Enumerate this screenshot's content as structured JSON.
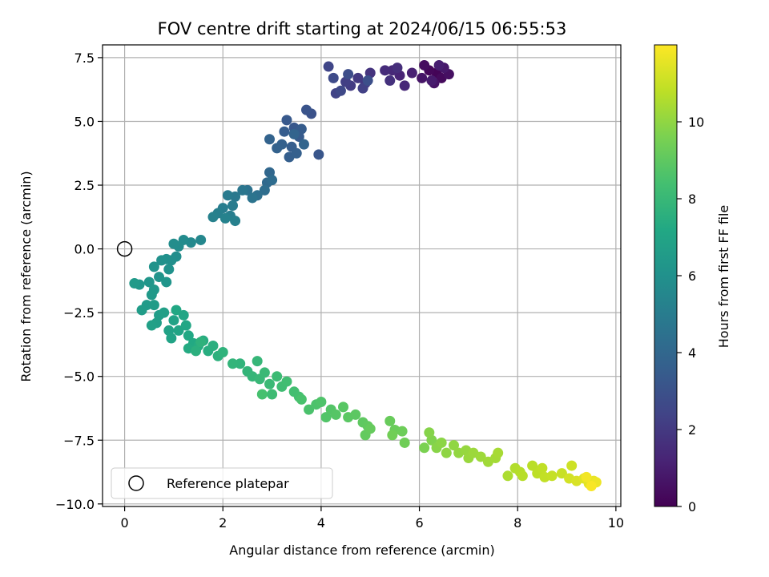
{
  "chart_data": {
    "type": "scatter",
    "title": "FOV centre drift starting at 2024/06/15 06:55:53",
    "xlabel": "Angular distance from reference (arcmin)",
    "ylabel": "Rotation from reference (arcmin)",
    "xlim": [
      -0.45,
      10.1
    ],
    "ylim": [
      -10.1,
      8.0
    ],
    "x_ticks": [
      0,
      2,
      4,
      6,
      8,
      10
    ],
    "y_ticks": [
      -10.0,
      -7.5,
      -5.0,
      -2.5,
      0.0,
      2.5,
      5.0,
      7.5
    ],
    "x_tick_labels": [
      "0",
      "2",
      "4",
      "6",
      "8",
      "10"
    ],
    "y_tick_labels": [
      "−10.0",
      "−7.5",
      "−5.0",
      "−2.5",
      "0.0",
      "2.5",
      "5.0",
      "7.5"
    ],
    "grid": true,
    "colormap": "viridis",
    "colorbar": {
      "label": "Hours from first FF file",
      "range": [
        0,
        12
      ],
      "ticks": [
        0,
        2,
        4,
        6,
        8,
        10
      ],
      "tick_labels": [
        "0",
        "2",
        "4",
        "6",
        "8",
        "10"
      ]
    },
    "reference_point": {
      "x": 0.0,
      "y": 0.0,
      "label": "Reference platepar"
    },
    "legend": {
      "placement": "bottom-left",
      "entries": [
        "Reference platepar"
      ]
    },
    "series": [
      {
        "color_by": "hours",
        "points": [
          {
            "x": 6.35,
            "y": 6.9,
            "h": 0.1
          },
          {
            "x": 6.2,
            "y": 7.0,
            "h": 0.2
          },
          {
            "x": 6.45,
            "y": 6.7,
            "h": 0.3
          },
          {
            "x": 6.1,
            "y": 7.2,
            "h": 0.4
          },
          {
            "x": 6.6,
            "y": 6.85,
            "h": 0.5
          },
          {
            "x": 6.3,
            "y": 6.5,
            "h": 0.6
          },
          {
            "x": 6.05,
            "y": 6.7,
            "h": 0.7
          },
          {
            "x": 6.5,
            "y": 7.1,
            "h": 0.8
          },
          {
            "x": 6.25,
            "y": 6.6,
            "h": 0.9
          },
          {
            "x": 6.4,
            "y": 7.2,
            "h": 1.0
          },
          {
            "x": 5.85,
            "y": 6.9,
            "h": 1.1
          },
          {
            "x": 5.6,
            "y": 6.8,
            "h": 1.2
          },
          {
            "x": 5.7,
            "y": 6.4,
            "h": 1.3
          },
          {
            "x": 5.45,
            "y": 7.0,
            "h": 1.4
          },
          {
            "x": 5.3,
            "y": 7.0,
            "h": 1.5
          },
          {
            "x": 5.55,
            "y": 7.1,
            "h": 1.6
          },
          {
            "x": 5.4,
            "y": 6.6,
            "h": 1.7
          },
          {
            "x": 5.0,
            "y": 6.9,
            "h": 1.8
          },
          {
            "x": 4.9,
            "y": 6.5,
            "h": 1.9
          },
          {
            "x": 4.75,
            "y": 6.7,
            "h": 2.0
          },
          {
            "x": 4.6,
            "y": 6.4,
            "h": 2.1
          },
          {
            "x": 4.5,
            "y": 6.55,
            "h": 2.2
          },
          {
            "x": 4.85,
            "y": 6.3,
            "h": 2.3
          },
          {
            "x": 4.3,
            "y": 6.1,
            "h": 2.4
          },
          {
            "x": 4.15,
            "y": 7.15,
            "h": 2.5
          },
          {
            "x": 4.4,
            "y": 6.2,
            "h": 2.6
          },
          {
            "x": 4.25,
            "y": 6.7,
            "h": 2.7
          },
          {
            "x": 4.55,
            "y": 6.85,
            "h": 2.8
          },
          {
            "x": 4.95,
            "y": 6.6,
            "h": 2.9
          },
          {
            "x": 3.8,
            "y": 5.3,
            "h": 3.0
          },
          {
            "x": 3.7,
            "y": 5.45,
            "h": 3.1
          },
          {
            "x": 3.95,
            "y": 3.7,
            "h": 3.2
          },
          {
            "x": 3.45,
            "y": 4.75,
            "h": 3.3
          },
          {
            "x": 3.3,
            "y": 5.05,
            "h": 3.35
          },
          {
            "x": 3.55,
            "y": 4.4,
            "h": 3.4
          },
          {
            "x": 3.6,
            "y": 4.7,
            "h": 3.45
          },
          {
            "x": 3.25,
            "y": 4.6,
            "h": 3.5
          },
          {
            "x": 3.4,
            "y": 4.0,
            "h": 3.55
          },
          {
            "x": 3.35,
            "y": 3.6,
            "h": 3.6
          },
          {
            "x": 3.5,
            "y": 3.75,
            "h": 3.65
          },
          {
            "x": 3.2,
            "y": 4.1,
            "h": 3.7
          },
          {
            "x": 3.1,
            "y": 3.95,
            "h": 3.75
          },
          {
            "x": 2.95,
            "y": 4.3,
            "h": 3.8
          },
          {
            "x": 3.45,
            "y": 4.5,
            "h": 3.85
          },
          {
            "x": 3.65,
            "y": 4.1,
            "h": 3.9
          },
          {
            "x": 2.95,
            "y": 3.0,
            "h": 4.0
          },
          {
            "x": 2.9,
            "y": 2.6,
            "h": 4.1
          },
          {
            "x": 3.0,
            "y": 2.7,
            "h": 4.2
          },
          {
            "x": 2.85,
            "y": 2.3,
            "h": 4.3
          },
          {
            "x": 2.7,
            "y": 2.1,
            "h": 4.4
          },
          {
            "x": 2.5,
            "y": 2.3,
            "h": 4.5
          },
          {
            "x": 2.6,
            "y": 2.0,
            "h": 4.6
          },
          {
            "x": 2.4,
            "y": 2.3,
            "h": 4.7
          },
          {
            "x": 2.25,
            "y": 2.05,
            "h": 4.8
          },
          {
            "x": 2.1,
            "y": 2.1,
            "h": 4.9
          },
          {
            "x": 2.2,
            "y": 1.7,
            "h": 5.0
          },
          {
            "x": 2.0,
            "y": 1.6,
            "h": 5.05
          },
          {
            "x": 2.15,
            "y": 1.3,
            "h": 5.1
          },
          {
            "x": 1.9,
            "y": 1.4,
            "h": 5.15
          },
          {
            "x": 2.25,
            "y": 1.1,
            "h": 5.2
          },
          {
            "x": 1.8,
            "y": 1.25,
            "h": 5.25
          },
          {
            "x": 2.05,
            "y": 1.2,
            "h": 5.3
          },
          {
            "x": 1.55,
            "y": 0.35,
            "h": 5.5
          },
          {
            "x": 1.35,
            "y": 0.25,
            "h": 5.6
          },
          {
            "x": 1.2,
            "y": 0.35,
            "h": 5.7
          },
          {
            "x": 1.1,
            "y": 0.1,
            "h": 5.75
          },
          {
            "x": 1.0,
            "y": 0.2,
            "h": 5.8
          },
          {
            "x": 1.05,
            "y": -0.3,
            "h": 5.85
          },
          {
            "x": 0.95,
            "y": -0.45,
            "h": 5.9
          },
          {
            "x": 0.85,
            "y": -0.4,
            "h": 5.95
          },
          {
            "x": 0.75,
            "y": -0.45,
            "h": 6.0
          },
          {
            "x": 0.9,
            "y": -0.8,
            "h": 6.05
          },
          {
            "x": 0.6,
            "y": -0.7,
            "h": 6.1
          },
          {
            "x": 0.7,
            "y": -1.1,
            "h": 6.15
          },
          {
            "x": 0.85,
            "y": -1.3,
            "h": 6.2
          },
          {
            "x": 0.5,
            "y": -1.3,
            "h": 6.25
          },
          {
            "x": 0.3,
            "y": -1.4,
            "h": 6.3
          },
          {
            "x": 0.6,
            "y": -1.6,
            "h": 6.35
          },
          {
            "x": 0.55,
            "y": -1.8,
            "h": 6.4
          },
          {
            "x": 0.2,
            "y": -1.35,
            "h": 6.45
          },
          {
            "x": 0.45,
            "y": -2.2,
            "h": 6.5
          },
          {
            "x": 0.35,
            "y": -2.4,
            "h": 6.55
          },
          {
            "x": 0.6,
            "y": -2.2,
            "h": 6.6
          },
          {
            "x": 0.7,
            "y": -2.6,
            "h": 6.65
          },
          {
            "x": 0.65,
            "y": -2.9,
            "h": 6.7
          },
          {
            "x": 0.8,
            "y": -2.5,
            "h": 6.75
          },
          {
            "x": 0.55,
            "y": -3.0,
            "h": 6.8
          },
          {
            "x": 0.9,
            "y": -3.2,
            "h": 6.85
          },
          {
            "x": 1.0,
            "y": -2.8,
            "h": 6.9
          },
          {
            "x": 0.95,
            "y": -3.5,
            "h": 6.95
          },
          {
            "x": 1.1,
            "y": -3.2,
            "h": 7.0
          },
          {
            "x": 1.2,
            "y": -2.6,
            "h": 7.05
          },
          {
            "x": 1.25,
            "y": -3.0,
            "h": 7.1
          },
          {
            "x": 1.05,
            "y": -2.4,
            "h": 7.15
          },
          {
            "x": 1.3,
            "y": -3.4,
            "h": 7.2
          },
          {
            "x": 1.4,
            "y": -3.7,
            "h": 7.25
          },
          {
            "x": 1.3,
            "y": -3.9,
            "h": 7.3
          },
          {
            "x": 1.5,
            "y": -3.8,
            "h": 7.35
          },
          {
            "x": 1.6,
            "y": -3.6,
            "h": 7.4
          },
          {
            "x": 1.7,
            "y": -4.0,
            "h": 7.45
          },
          {
            "x": 1.8,
            "y": -3.8,
            "h": 7.5
          },
          {
            "x": 1.45,
            "y": -4.0,
            "h": 7.55
          },
          {
            "x": 1.9,
            "y": -4.2,
            "h": 7.6
          },
          {
            "x": 1.55,
            "y": -3.65,
            "h": 7.65
          },
          {
            "x": 2.0,
            "y": -4.05,
            "h": 7.7
          },
          {
            "x": 2.35,
            "y": -4.5,
            "h": 7.75
          },
          {
            "x": 2.2,
            "y": -4.5,
            "h": 7.8
          },
          {
            "x": 2.5,
            "y": -4.8,
            "h": 7.85
          },
          {
            "x": 2.6,
            "y": -5.0,
            "h": 7.9
          },
          {
            "x": 2.7,
            "y": -4.4,
            "h": 7.95
          },
          {
            "x": 2.75,
            "y": -5.1,
            "h": 8.0
          },
          {
            "x": 2.85,
            "y": -4.85,
            "h": 8.05
          },
          {
            "x": 2.95,
            "y": -5.3,
            "h": 8.1
          },
          {
            "x": 3.1,
            "y": -5.0,
            "h": 8.15
          },
          {
            "x": 3.0,
            "y": -5.7,
            "h": 8.2
          },
          {
            "x": 3.2,
            "y": -5.4,
            "h": 8.25
          },
          {
            "x": 3.3,
            "y": -5.2,
            "h": 8.3
          },
          {
            "x": 3.45,
            "y": -5.6,
            "h": 8.35
          },
          {
            "x": 3.55,
            "y": -5.8,
            "h": 8.4
          },
          {
            "x": 2.8,
            "y": -5.7,
            "h": 8.45
          },
          {
            "x": 3.6,
            "y": -5.9,
            "h": 8.5
          },
          {
            "x": 3.75,
            "y": -6.3,
            "h": 8.55
          },
          {
            "x": 3.9,
            "y": -6.1,
            "h": 8.6
          },
          {
            "x": 4.0,
            "y": -6.0,
            "h": 8.65
          },
          {
            "x": 4.1,
            "y": -6.6,
            "h": 8.7
          },
          {
            "x": 4.2,
            "y": -6.3,
            "h": 8.75
          },
          {
            "x": 4.3,
            "y": -6.5,
            "h": 8.8
          },
          {
            "x": 4.45,
            "y": -6.2,
            "h": 8.85
          },
          {
            "x": 4.55,
            "y": -6.6,
            "h": 8.9
          },
          {
            "x": 4.7,
            "y": -6.5,
            "h": 8.95
          },
          {
            "x": 4.85,
            "y": -6.8,
            "h": 9.0
          },
          {
            "x": 4.95,
            "y": -6.95,
            "h": 9.05
          },
          {
            "x": 4.9,
            "y": -7.3,
            "h": 9.1
          },
          {
            "x": 5.0,
            "y": -7.05,
            "h": 9.15
          },
          {
            "x": 5.4,
            "y": -6.75,
            "h": 9.2
          },
          {
            "x": 5.5,
            "y": -7.1,
            "h": 9.25
          },
          {
            "x": 5.65,
            "y": -7.15,
            "h": 9.3
          },
          {
            "x": 5.7,
            "y": -7.6,
            "h": 9.35
          },
          {
            "x": 5.45,
            "y": -7.3,
            "h": 9.4
          },
          {
            "x": 6.1,
            "y": -7.8,
            "h": 9.6
          },
          {
            "x": 6.25,
            "y": -7.5,
            "h": 9.7
          },
          {
            "x": 6.2,
            "y": -7.2,
            "h": 9.8
          },
          {
            "x": 6.35,
            "y": -7.8,
            "h": 9.85
          },
          {
            "x": 6.45,
            "y": -7.6,
            "h": 9.9
          },
          {
            "x": 6.55,
            "y": -8.0,
            "h": 9.95
          },
          {
            "x": 6.7,
            "y": -7.7,
            "h": 10.0
          },
          {
            "x": 6.8,
            "y": -8.0,
            "h": 10.05
          },
          {
            "x": 6.95,
            "y": -7.9,
            "h": 10.1
          },
          {
            "x": 7.0,
            "y": -8.2,
            "h": 10.15
          },
          {
            "x": 7.1,
            "y": -8.0,
            "h": 10.2
          },
          {
            "x": 7.25,
            "y": -8.15,
            "h": 10.25
          },
          {
            "x": 7.4,
            "y": -8.35,
            "h": 10.3
          },
          {
            "x": 7.55,
            "y": -8.2,
            "h": 10.35
          },
          {
            "x": 7.6,
            "y": -8.0,
            "h": 10.4
          },
          {
            "x": 7.8,
            "y": -8.9,
            "h": 10.5
          },
          {
            "x": 7.95,
            "y": -8.6,
            "h": 10.6
          },
          {
            "x": 8.05,
            "y": -8.75,
            "h": 10.65
          },
          {
            "x": 8.1,
            "y": -8.9,
            "h": 10.7
          },
          {
            "x": 8.3,
            "y": -8.5,
            "h": 10.75
          },
          {
            "x": 8.4,
            "y": -8.8,
            "h": 10.8
          },
          {
            "x": 8.5,
            "y": -8.6,
            "h": 10.85
          },
          {
            "x": 8.55,
            "y": -8.95,
            "h": 10.9
          },
          {
            "x": 8.7,
            "y": -8.9,
            "h": 10.95
          },
          {
            "x": 8.9,
            "y": -8.8,
            "h": 11.0
          },
          {
            "x": 9.1,
            "y": -8.5,
            "h": 11.1
          },
          {
            "x": 9.05,
            "y": -9.0,
            "h": 11.2
          },
          {
            "x": 9.2,
            "y": -9.1,
            "h": 11.3
          },
          {
            "x": 9.35,
            "y": -9.0,
            "h": 11.4
          },
          {
            "x": 9.45,
            "y": -9.2,
            "h": 11.5
          },
          {
            "x": 9.55,
            "y": -9.1,
            "h": 11.6
          },
          {
            "x": 9.6,
            "y": -9.15,
            "h": 11.7
          },
          {
            "x": 9.4,
            "y": -8.95,
            "h": 11.8
          },
          {
            "x": 9.5,
            "y": -9.3,
            "h": 11.9
          }
        ]
      }
    ]
  }
}
